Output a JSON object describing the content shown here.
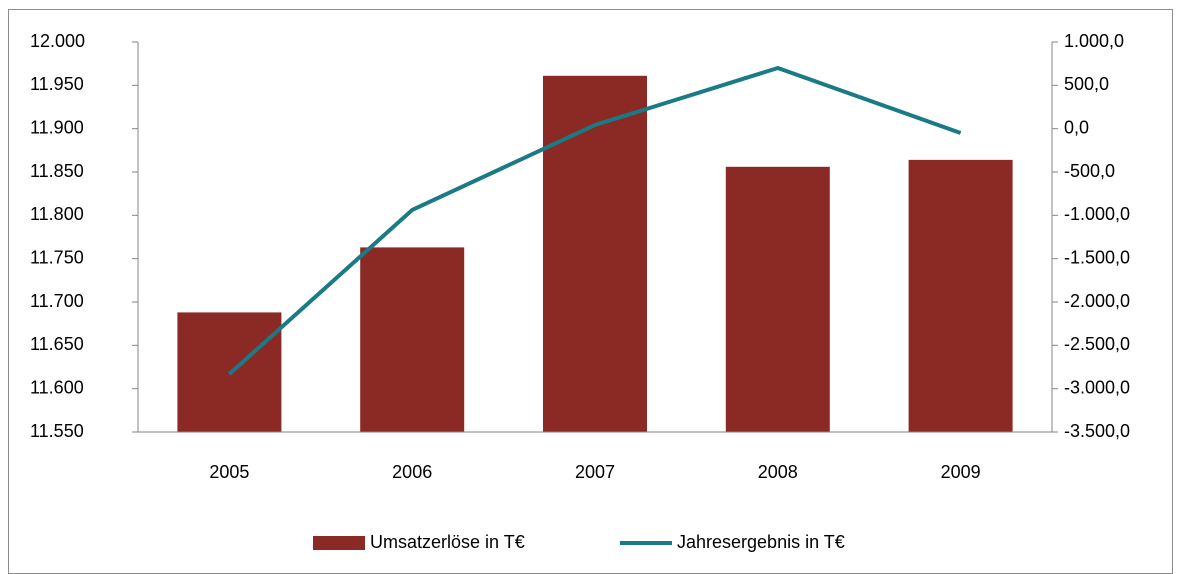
{
  "chart_data": {
    "type": "combo",
    "categories": [
      "2005",
      "2006",
      "2007",
      "2008",
      "2009"
    ],
    "series": [
      {
        "name": "Umsatzerlöse in T€",
        "type": "bar",
        "color": "#8b2a24",
        "values": [
          11688,
          11763,
          11961,
          11856,
          11864
        ]
      },
      {
        "name": "Jahresergebnis in T€",
        "type": "line",
        "axis": "y2",
        "color": "#1a7a86",
        "values": [
          -2831,
          -938,
          42,
          700,
          -50
        ]
      }
    ],
    "ylim": [
      11550,
      12000
    ],
    "yticks": [
      {
        "value": 11550,
        "label": "11.550"
      },
      {
        "value": 11600,
        "label": "11.600"
      },
      {
        "value": 11650,
        "label": "11.650"
      },
      {
        "value": 11700,
        "label": "11.700"
      },
      {
        "value": 11750,
        "label": "11.750"
      },
      {
        "value": 11800,
        "label": "11.800"
      },
      {
        "value": 11850,
        "label": "11.850"
      },
      {
        "value": 11900,
        "label": "11.900"
      },
      {
        "value": 11950,
        "label": "11.950"
      },
      {
        "value": 12000,
        "label": "12.000"
      }
    ],
    "y2lim": [
      -3500,
      1000
    ],
    "y2ticks": [
      {
        "value": -3500,
        "label": "-3.500,0"
      },
      {
        "value": -3000,
        "label": "-3.000,0"
      },
      {
        "value": -2500,
        "label": "-2.500,0"
      },
      {
        "value": -2000,
        "label": "-2.000,0"
      },
      {
        "value": -1500,
        "label": "-1.500,0"
      },
      {
        "value": -1000,
        "label": "-1.000,0"
      },
      {
        "value": -500,
        "label": "-500,0"
      },
      {
        "value": 0,
        "label": "0,0"
      },
      {
        "value": 500,
        "label": "500,0"
      },
      {
        "value": 1000,
        "label": "1.000,0"
      }
    ],
    "grid": false,
    "legend": "bottom"
  }
}
